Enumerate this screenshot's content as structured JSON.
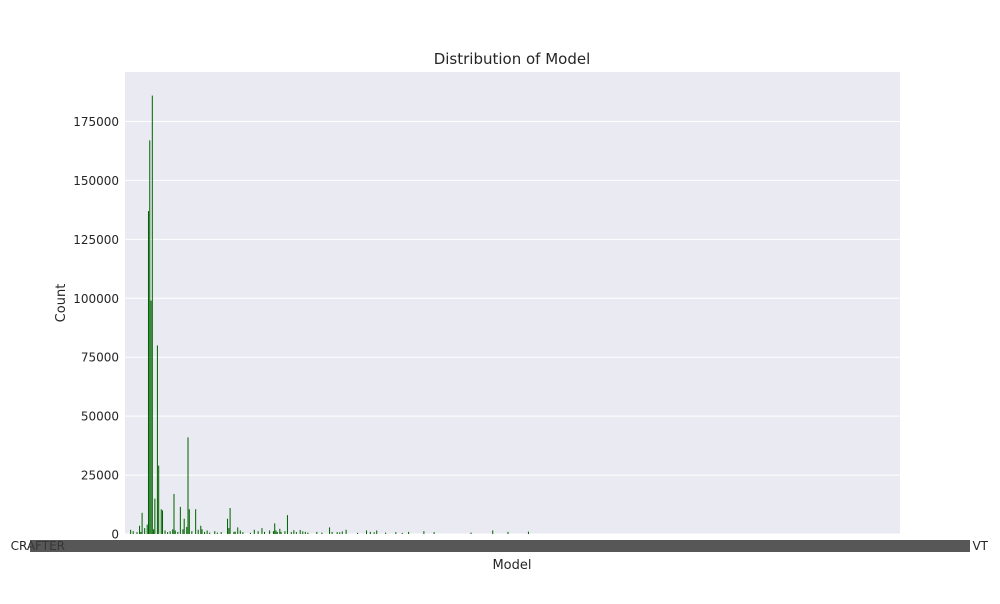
{
  "chart_data": {
    "type": "bar",
    "title": "Distribution of Model",
    "xlabel": "Model",
    "ylabel": "Count",
    "ylim": [
      0,
      196000
    ],
    "yticks": [
      0,
      25000,
      50000,
      75000,
      100000,
      125000,
      150000,
      175000
    ],
    "grid": true,
    "legend": "none",
    "bar_color": "#006400",
    "background_color": "#eaeaf2",
    "x_tick_labels_note_first": "CRAFTER",
    "x_tick_labels_note_last": "VT",
    "values": [
      1800,
      0,
      1200,
      0,
      0,
      800,
      0,
      3500,
      900,
      9000,
      0,
      2500,
      0,
      4000,
      137000,
      167000,
      99000,
      186000,
      2000,
      15000,
      0,
      80000,
      29000,
      0,
      10500,
      10000,
      0,
      1500,
      0,
      800,
      0,
      1200,
      0,
      2000,
      17000,
      1500,
      0,
      900,
      0,
      11500,
      0,
      2000,
      6500,
      0,
      3000,
      41000,
      10500,
      0,
      1200,
      0,
      0,
      10500,
      0,
      1800,
      0,
      3500,
      2000,
      0,
      900,
      0,
      1500,
      0,
      600,
      0,
      0,
      0,
      1200,
      0,
      600,
      0,
      0,
      800,
      0,
      0,
      0,
      0,
      6500,
      2500,
      11000,
      0,
      0,
      900,
      1000,
      0,
      2800,
      0,
      1500,
      0,
      800,
      0,
      0,
      0,
      0,
      0,
      500,
      0,
      0,
      1800,
      0,
      0,
      1200,
      0,
      0,
      2500,
      0,
      900,
      0,
      0,
      0,
      1500,
      0,
      0,
      1200,
      4500,
      1500,
      900,
      0,
      2200,
      900,
      0,
      0,
      1200,
      0,
      8000,
      0,
      0,
      800,
      0,
      1600,
      0,
      800,
      0,
      0,
      1700,
      0,
      1100,
      0,
      900,
      0,
      600,
      0,
      0,
      0,
      0,
      0,
      0,
      900,
      0,
      0,
      0,
      600,
      0,
      0,
      0,
      0,
      0,
      2800,
      0,
      900,
      0,
      0,
      0,
      800,
      0,
      700,
      0,
      1100,
      0,
      0,
      1800,
      0,
      0,
      0,
      0,
      0,
      0,
      0,
      0,
      500,
      0,
      0,
      0,
      0,
      0,
      0,
      1500,
      0,
      0,
      900,
      0,
      0,
      700,
      0,
      1500,
      0,
      0,
      0,
      0,
      0,
      0,
      600,
      0,
      0,
      0,
      0,
      0,
      0,
      0,
      800,
      0,
      0,
      0,
      0,
      500,
      0,
      0,
      0,
      0,
      900,
      0,
      0,
      0,
      0,
      0,
      0,
      0,
      0,
      0,
      0,
      0,
      1200,
      0,
      0,
      0,
      0,
      0,
      0,
      0,
      800,
      0,
      0,
      0,
      0,
      0,
      0,
      0,
      0,
      0,
      0,
      0,
      0,
      0,
      0,
      0,
      0,
      0,
      0,
      0,
      0,
      0,
      0,
      0,
      0,
      0,
      0,
      0,
      0,
      600,
      0,
      0,
      0,
      0,
      0,
      0,
      0,
      0,
      0,
      0,
      0,
      0,
      0,
      0,
      0,
      0,
      1500,
      0,
      0,
      0,
      0,
      0,
      0,
      0,
      0,
      0,
      0,
      0,
      900,
      0,
      0,
      0,
      0,
      0,
      0,
      0,
      0,
      0,
      0,
      0,
      0,
      0,
      0,
      0,
      1000,
      0,
      0,
      0,
      0,
      0,
      0,
      0,
      0,
      0,
      0,
      0,
      0,
      0,
      0,
      0,
      0,
      0,
      0,
      0,
      0,
      0,
      0,
      0,
      0,
      0,
      0,
      0,
      0,
      0,
      0,
      0,
      0,
      0,
      0,
      0,
      0,
      0,
      0,
      0,
      0,
      0,
      0,
      0,
      0,
      0,
      0,
      0,
      0,
      0,
      0,
      0,
      0,
      0,
      0,
      0,
      0,
      0,
      0,
      0,
      0,
      0,
      0,
      0,
      0,
      0,
      0,
      0,
      0,
      0,
      0,
      0,
      0,
      0,
      0,
      0,
      0,
      0,
      0,
      0,
      0,
      0,
      0,
      0,
      0,
      0,
      0,
      0,
      0,
      0,
      0,
      0,
      0,
      0,
      0,
      0,
      0,
      0,
      0,
      0,
      0,
      0,
      0,
      0,
      0,
      0,
      0,
      0,
      0,
      0,
      0,
      0,
      0,
      0,
      0,
      0,
      0,
      0,
      0,
      0,
      0,
      0,
      0,
      0,
      0,
      0,
      0,
      0,
      0,
      0,
      0,
      0,
      0,
      0,
      0,
      0,
      0,
      0,
      0,
      0,
      0,
      0,
      0,
      0,
      0,
      0,
      0,
      0,
      0,
      0,
      0,
      0,
      0,
      0,
      0,
      0,
      0,
      0,
      0,
      0,
      0,
      0,
      0,
      0,
      0,
      0,
      0,
      0,
      0,
      0,
      0,
      0,
      0,
      0,
      0,
      0,
      0,
      0,
      0,
      0,
      0,
      0,
      0,
      0,
      0,
      0,
      0,
      0,
      0,
      0,
      0,
      0,
      0,
      0,
      0,
      0,
      0,
      0,
      0,
      0,
      0,
      0,
      0,
      0,
      0,
      0,
      0,
      0,
      0,
      0,
      0,
      0,
      0,
      0,
      0,
      0,
      0,
      0,
      0,
      0,
      0,
      0,
      0,
      0,
      0,
      0,
      0,
      0,
      0,
      0,
      0,
      0,
      0,
      0,
      0,
      0,
      0,
      0,
      0,
      0,
      0,
      0,
      0,
      0,
      0,
      0,
      0,
      0,
      0,
      0,
      0,
      0,
      0,
      0,
      0,
      0,
      0,
      0,
      0,
      0,
      0,
      0,
      0,
      0,
      0,
      0,
      0,
      0,
      0,
      0,
      0,
      0,
      0,
      0,
      0,
      0,
      0,
      0,
      0,
      0,
      0,
      0,
      0,
      0,
      0,
      0,
      0,
      0
    ]
  }
}
